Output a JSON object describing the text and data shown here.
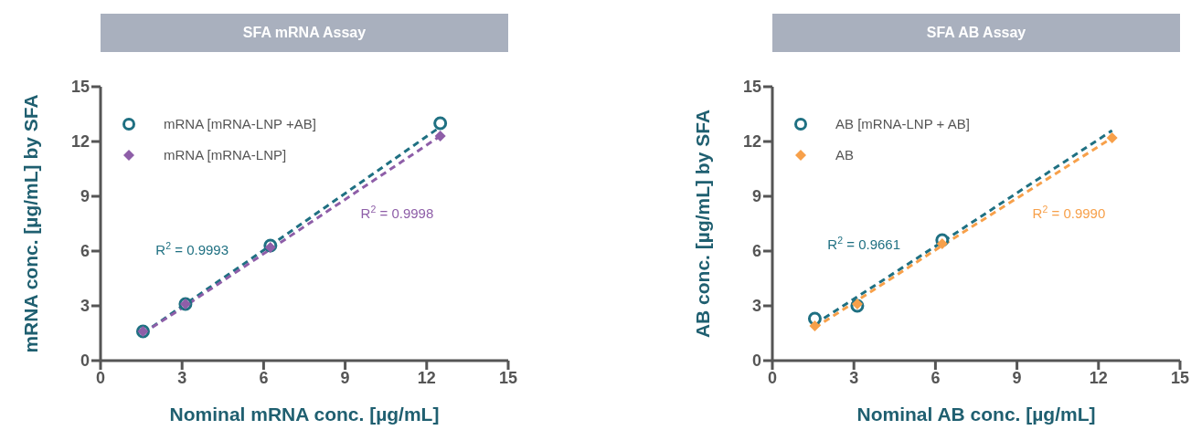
{
  "chart_data": [
    {
      "type": "scatter",
      "title": "SFA mRNA Assay",
      "xlabel": "Nominal mRNA conc. [µg/mL]",
      "ylabel": "mRNA conc. [µg/mL] by SFA",
      "xlim": [
        0,
        15
      ],
      "xticks": [
        0,
        3,
        6,
        9,
        12,
        15
      ],
      "ylim": [
        0,
        15
      ],
      "yticks": [
        0,
        3,
        6,
        9,
        12,
        15
      ],
      "grid": false,
      "legend": "top left",
      "x": [
        1.5625,
        3.125,
        6.25,
        12.5
      ],
      "series": [
        {
          "name": "mRNA [mRNA-LNP +AB]",
          "color": "#1f7082",
          "marker": "circle",
          "values": [
            1.6,
            3.1,
            6.3,
            13.0
          ]
        },
        {
          "name": "mRNA [mRNA-LNP]",
          "color": "#8e5ea8",
          "marker": "diamond",
          "values": [
            1.6,
            3.1,
            6.2,
            12.3
          ]
        },
        {
          "type": "line",
          "color": "#1f7082",
          "line_style": "dashed",
          "values": [
            1.5,
            3.1,
            6.3,
            12.8
          ]
        },
        {
          "type": "line",
          "color": "#8e5ea8",
          "line_style": "dashed",
          "values": [
            1.5,
            3.0,
            6.1,
            12.3
          ]
        }
      ],
      "annotations": [
        "R$^{2}$ = 0.9993",
        "R$^{2}$ = 0.9998"
      ]
    },
    {
      "type": "scatter",
      "title": "SFA AB Assay",
      "xlabel": "Nominal AB conc. [µg/mL]",
      "ylabel": "AB conc. [µg/mL] by SFA",
      "xlim": [
        0,
        15
      ],
      "xticks": [
        0,
        3,
        6,
        9,
        12,
        15
      ],
      "ylim": [
        0,
        15
      ],
      "yticks": [
        0,
        3,
        6,
        9,
        12,
        15
      ],
      "grid": false,
      "legend": "top left",
      "x": [
        1.5625,
        3.125,
        6.25,
        12.5
      ],
      "series": [
        {
          "name": "AB [mRNA-LNP + AB]",
          "color": "#1f7082",
          "marker": "circle",
          "values": [
            2.3,
            3.0,
            6.6,
            null
          ]
        },
        {
          "name": "AB",
          "color": "#f7a04a",
          "marker": "diamond",
          "values": [
            1.9,
            3.1,
            6.4,
            12.2
          ]
        },
        {
          "type": "line",
          "color": "#1f7082",
          "line_style": "dashed",
          "values": [
            2.0,
            3.5,
            6.5,
            12.6
          ]
        },
        {
          "type": "line",
          "color": "#f7a04a",
          "line_style": "dashed",
          "values": [
            1.8,
            3.3,
            6.3,
            12.2
          ]
        }
      ],
      "annotations": [
        "R$^{2}$ = 0.9661",
        "R$^{2}$ = 0.9990"
      ]
    }
  ]
}
